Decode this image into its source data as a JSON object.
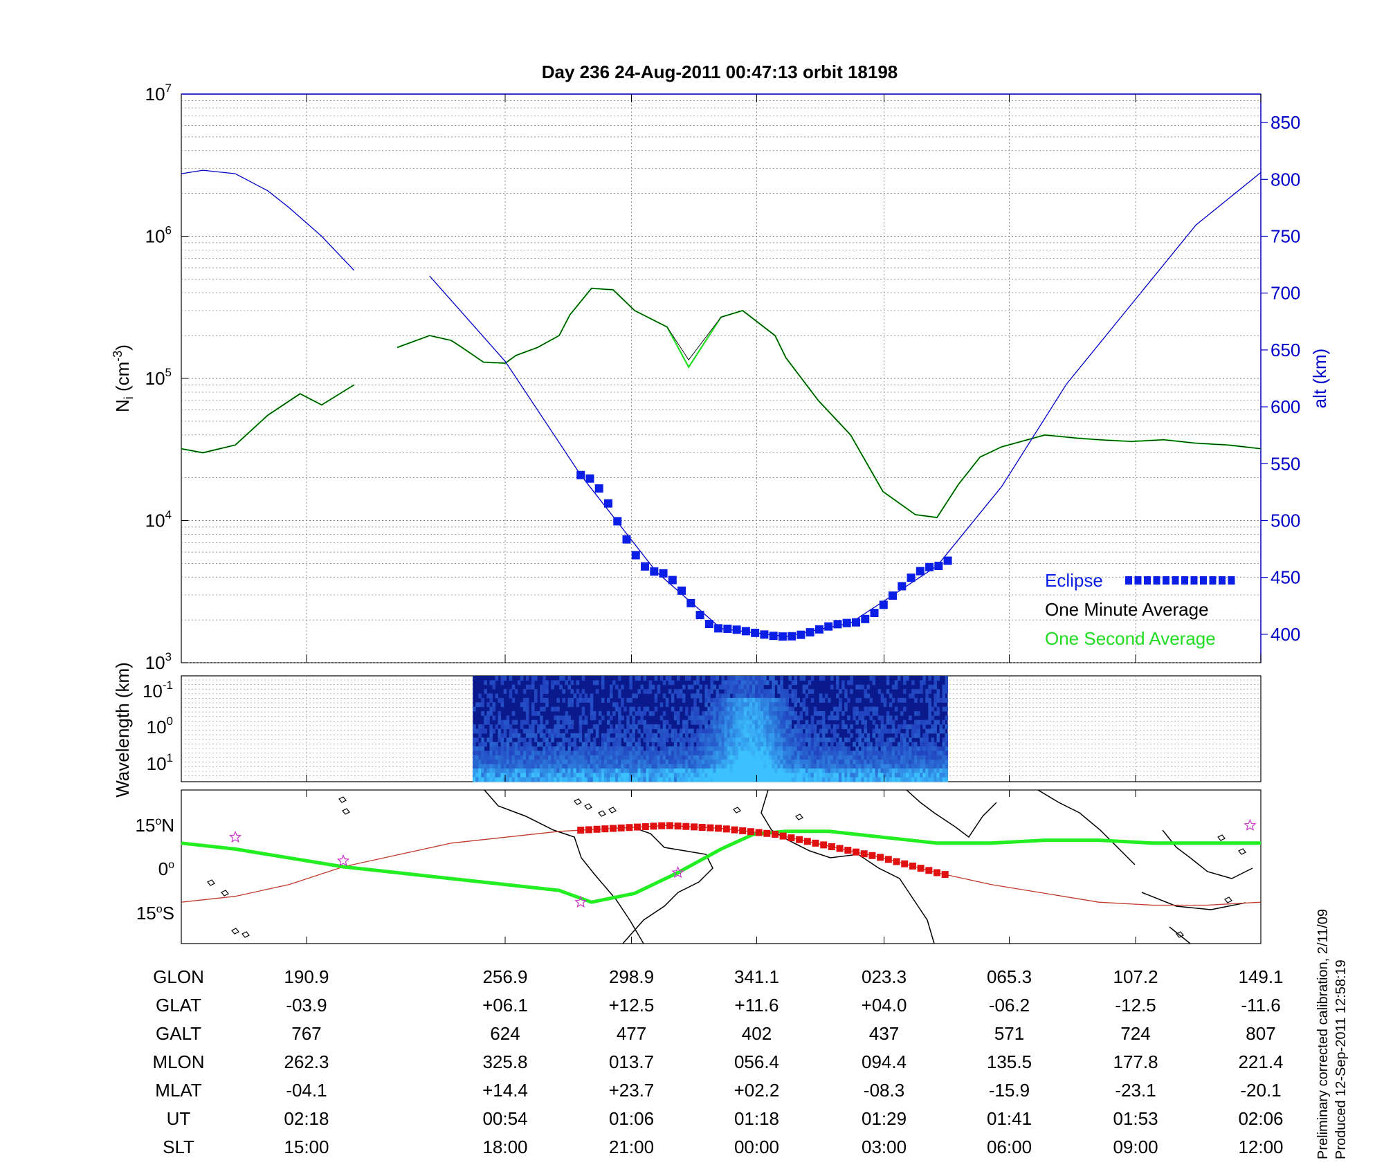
{
  "title": "Day 236  24-Aug-2011 00:47:13   orbit 18198",
  "calibration_note": "Preliminary corrected calibration, 2/11/09",
  "produced_note": "Produced 12-Sep-2011 12:58:19",
  "colors": {
    "altitude": "#0000c8",
    "eclipse": "#0a1ee6",
    "minute_avg": "#000000",
    "second_avg": "#22dd22",
    "ground_track": "#22ee22",
    "mag_equator": "#c0392b",
    "eclipse_track": "#e01010",
    "station_star": "#cc33cc"
  },
  "chart_data": [
    {
      "type": "line",
      "panel": "ion-density",
      "title": "Day 236  24-Aug-2011 00:47:13   orbit 18198",
      "ylabel": "N_i (cm^-3)",
      "ylabel_parts": {
        "main": "N",
        "sub": "i",
        "unit_open": " (cm",
        "sup": "-3",
        "unit_close": ")"
      },
      "y_scale": "log",
      "ylim": [
        1000,
        10000000
      ],
      "y_ticks": [
        {
          "base": "10",
          "exp": "3"
        },
        {
          "base": "10",
          "exp": "4"
        },
        {
          "base": "10",
          "exp": "5"
        },
        {
          "base": "10",
          "exp": "6"
        },
        {
          "base": "10",
          "exp": "7"
        }
      ],
      "y2label": "alt (km)",
      "y2lim": [
        375,
        875
      ],
      "y2_ticks": [
        400,
        450,
        500,
        550,
        600,
        650,
        700,
        750,
        800,
        850
      ],
      "x": [
        0.0,
        0.02,
        0.05,
        0.08,
        0.11,
        0.13,
        0.16,
        0.17,
        0.18,
        0.2,
        0.23,
        0.25,
        0.26,
        0.28,
        0.3,
        0.31,
        0.33,
        0.35,
        0.36,
        0.38,
        0.4,
        0.42,
        0.45,
        0.47,
        0.5,
        0.52,
        0.55,
        0.56,
        0.59,
        0.62,
        0.65,
        0.68,
        0.7,
        0.72,
        0.74,
        0.76,
        0.8,
        0.83,
        0.85,
        0.88,
        0.91,
        0.94,
        0.97,
        1.0
      ],
      "series": [
        {
          "name": "One Minute Average",
          "values": [
            32000,
            30000,
            34000,
            55000,
            78000,
            65000,
            90000,
            null,
            null,
            165000,
            200000,
            185000,
            165000,
            130000,
            128000,
            145000,
            165000,
            200000,
            280000,
            430000,
            420000,
            300000,
            230000,
            135000,
            270000,
            300000,
            200000,
            140000,
            70000,
            40000,
            16000,
            11000,
            10500,
            18000,
            28000,
            33000,
            40000,
            38000,
            37000,
            36000,
            37000,
            35000,
            34000,
            32000
          ]
        },
        {
          "name": "One Second Average",
          "values": [
            32000,
            30000,
            34000,
            55000,
            78000,
            65000,
            90000,
            null,
            null,
            165000,
            200000,
            185000,
            165000,
            130000,
            128000,
            145000,
            165000,
            200000,
            280000,
            430000,
            420000,
            300000,
            230000,
            120000,
            270000,
            300000,
            200000,
            140000,
            70000,
            40000,
            16000,
            11000,
            10500,
            18000,
            28000,
            33000,
            40000,
            38000,
            37000,
            36000,
            37000,
            35000,
            34000,
            32000
          ]
        }
      ],
      "altitude_x": [
        0.0,
        0.02,
        0.05,
        0.08,
        0.1,
        0.13,
        0.16,
        0.23,
        0.3,
        0.37,
        0.44,
        0.5,
        0.56,
        0.62,
        0.7,
        0.76,
        0.82,
        0.88,
        0.94,
        1.0
      ],
      "altitude_km": [
        805,
        808,
        805,
        790,
        775,
        750,
        720,
        715,
        640,
        540,
        455,
        405,
        398,
        410,
        460,
        530,
        620,
        690,
        760,
        806
      ],
      "altitude_gap_x": [
        0.16,
        0.23
      ],
      "eclipse_x_range": [
        0.37,
        0.71
      ],
      "legend": {
        "placement": "bottom-right",
        "entries": [
          "Eclipse",
          "One Minute Average",
          "One Second Average"
        ]
      }
    },
    {
      "type": "heatmap",
      "panel": "wavelength-spectrogram",
      "ylabel": "Wavelength (km)",
      "y_scale": "log",
      "y_ticks": [
        {
          "base": "10",
          "exp": "-1"
        },
        {
          "base": "10",
          "exp": "0"
        },
        {
          "base": "10",
          "exp": "1"
        }
      ],
      "data_x_range": [
        0.27,
        0.71
      ]
    },
    {
      "type": "line",
      "panel": "ground-track-map",
      "y_ticks": [
        {
          "value": "15",
          "hemisphere": "N"
        },
        {
          "value": "0",
          "hemisphere": ""
        },
        {
          "value": "15",
          "hemisphere": "S"
        }
      ],
      "ylim": [
        -26,
        26
      ],
      "ground_track": {
        "x": [
          0.0,
          0.05,
          0.1,
          0.15,
          0.2,
          0.25,
          0.3,
          0.35,
          0.38,
          0.42,
          0.46,
          0.5,
          0.53,
          0.56,
          0.6,
          0.65,
          0.7,
          0.75,
          0.8,
          0.85,
          0.9,
          0.95,
          1.0
        ],
        "lat": [
          8,
          6,
          3,
          0,
          -2,
          -4,
          -6,
          -8,
          -12,
          -9,
          -2,
          6,
          11,
          12,
          12,
          10,
          8,
          8,
          9,
          9,
          8,
          8,
          8
        ]
      },
      "magnetic_equator": {
        "x": [
          0.0,
          0.05,
          0.1,
          0.15,
          0.2,
          0.25,
          0.3,
          0.35,
          0.4,
          0.45,
          0.5,
          0.55,
          0.6,
          0.65,
          0.7,
          0.75,
          0.8,
          0.85,
          0.9,
          0.95,
          1.0
        ],
        "lat": [
          -12,
          -10,
          -6,
          0,
          4,
          8,
          10,
          12,
          13,
          14,
          13,
          11,
          7,
          3,
          -2,
          -6,
          -9,
          -12,
          -13,
          -13,
          -12
        ]
      },
      "stations": [
        {
          "x": 0.05,
          "lat": 10
        },
        {
          "x": 0.15,
          "lat": 2
        },
        {
          "x": 0.37,
          "lat": -12
        },
        {
          "x": 0.46,
          "lat": -2
        },
        {
          "x": 0.99,
          "lat": 14
        }
      ]
    }
  ],
  "table": {
    "rows": [
      {
        "label": "GLON",
        "values": [
          "190.9",
          "256.9",
          "298.9",
          "341.1",
          "023.3",
          "065.3",
          "107.2",
          "149.1"
        ]
      },
      {
        "label": "GLAT",
        "values": [
          "-03.9",
          "+06.1",
          "+12.5",
          "+11.6",
          "+04.0",
          "-06.2",
          "-12.5",
          "-11.6"
        ]
      },
      {
        "label": "GALT",
        "values": [
          "767",
          "624",
          "477",
          "402",
          "437",
          "571",
          "724",
          "807"
        ]
      },
      {
        "label": "MLON",
        "values": [
          "262.3",
          "325.8",
          "013.7",
          "056.4",
          "094.4",
          "135.5",
          "177.8",
          "221.4"
        ]
      },
      {
        "label": "MLAT",
        "values": [
          "-04.1",
          "+14.4",
          "+23.7",
          "+02.2",
          "-08.3",
          "-15.9",
          "-23.1",
          "-20.1"
        ]
      },
      {
        "label": "UT",
        "values": [
          "02:18",
          "00:54",
          "01:06",
          "01:18",
          "01:29",
          "01:41",
          "01:53",
          "02:06"
        ]
      },
      {
        "label": "SLT",
        "values": [
          "15:00",
          "18:00",
          "21:00",
          "00:00",
          "03:00",
          "06:00",
          "09:00",
          "12:00"
        ]
      }
    ],
    "column_x": [
      0.116,
      0.3,
      0.417,
      0.533,
      0.651,
      0.767,
      0.884,
      1.0
    ]
  }
}
